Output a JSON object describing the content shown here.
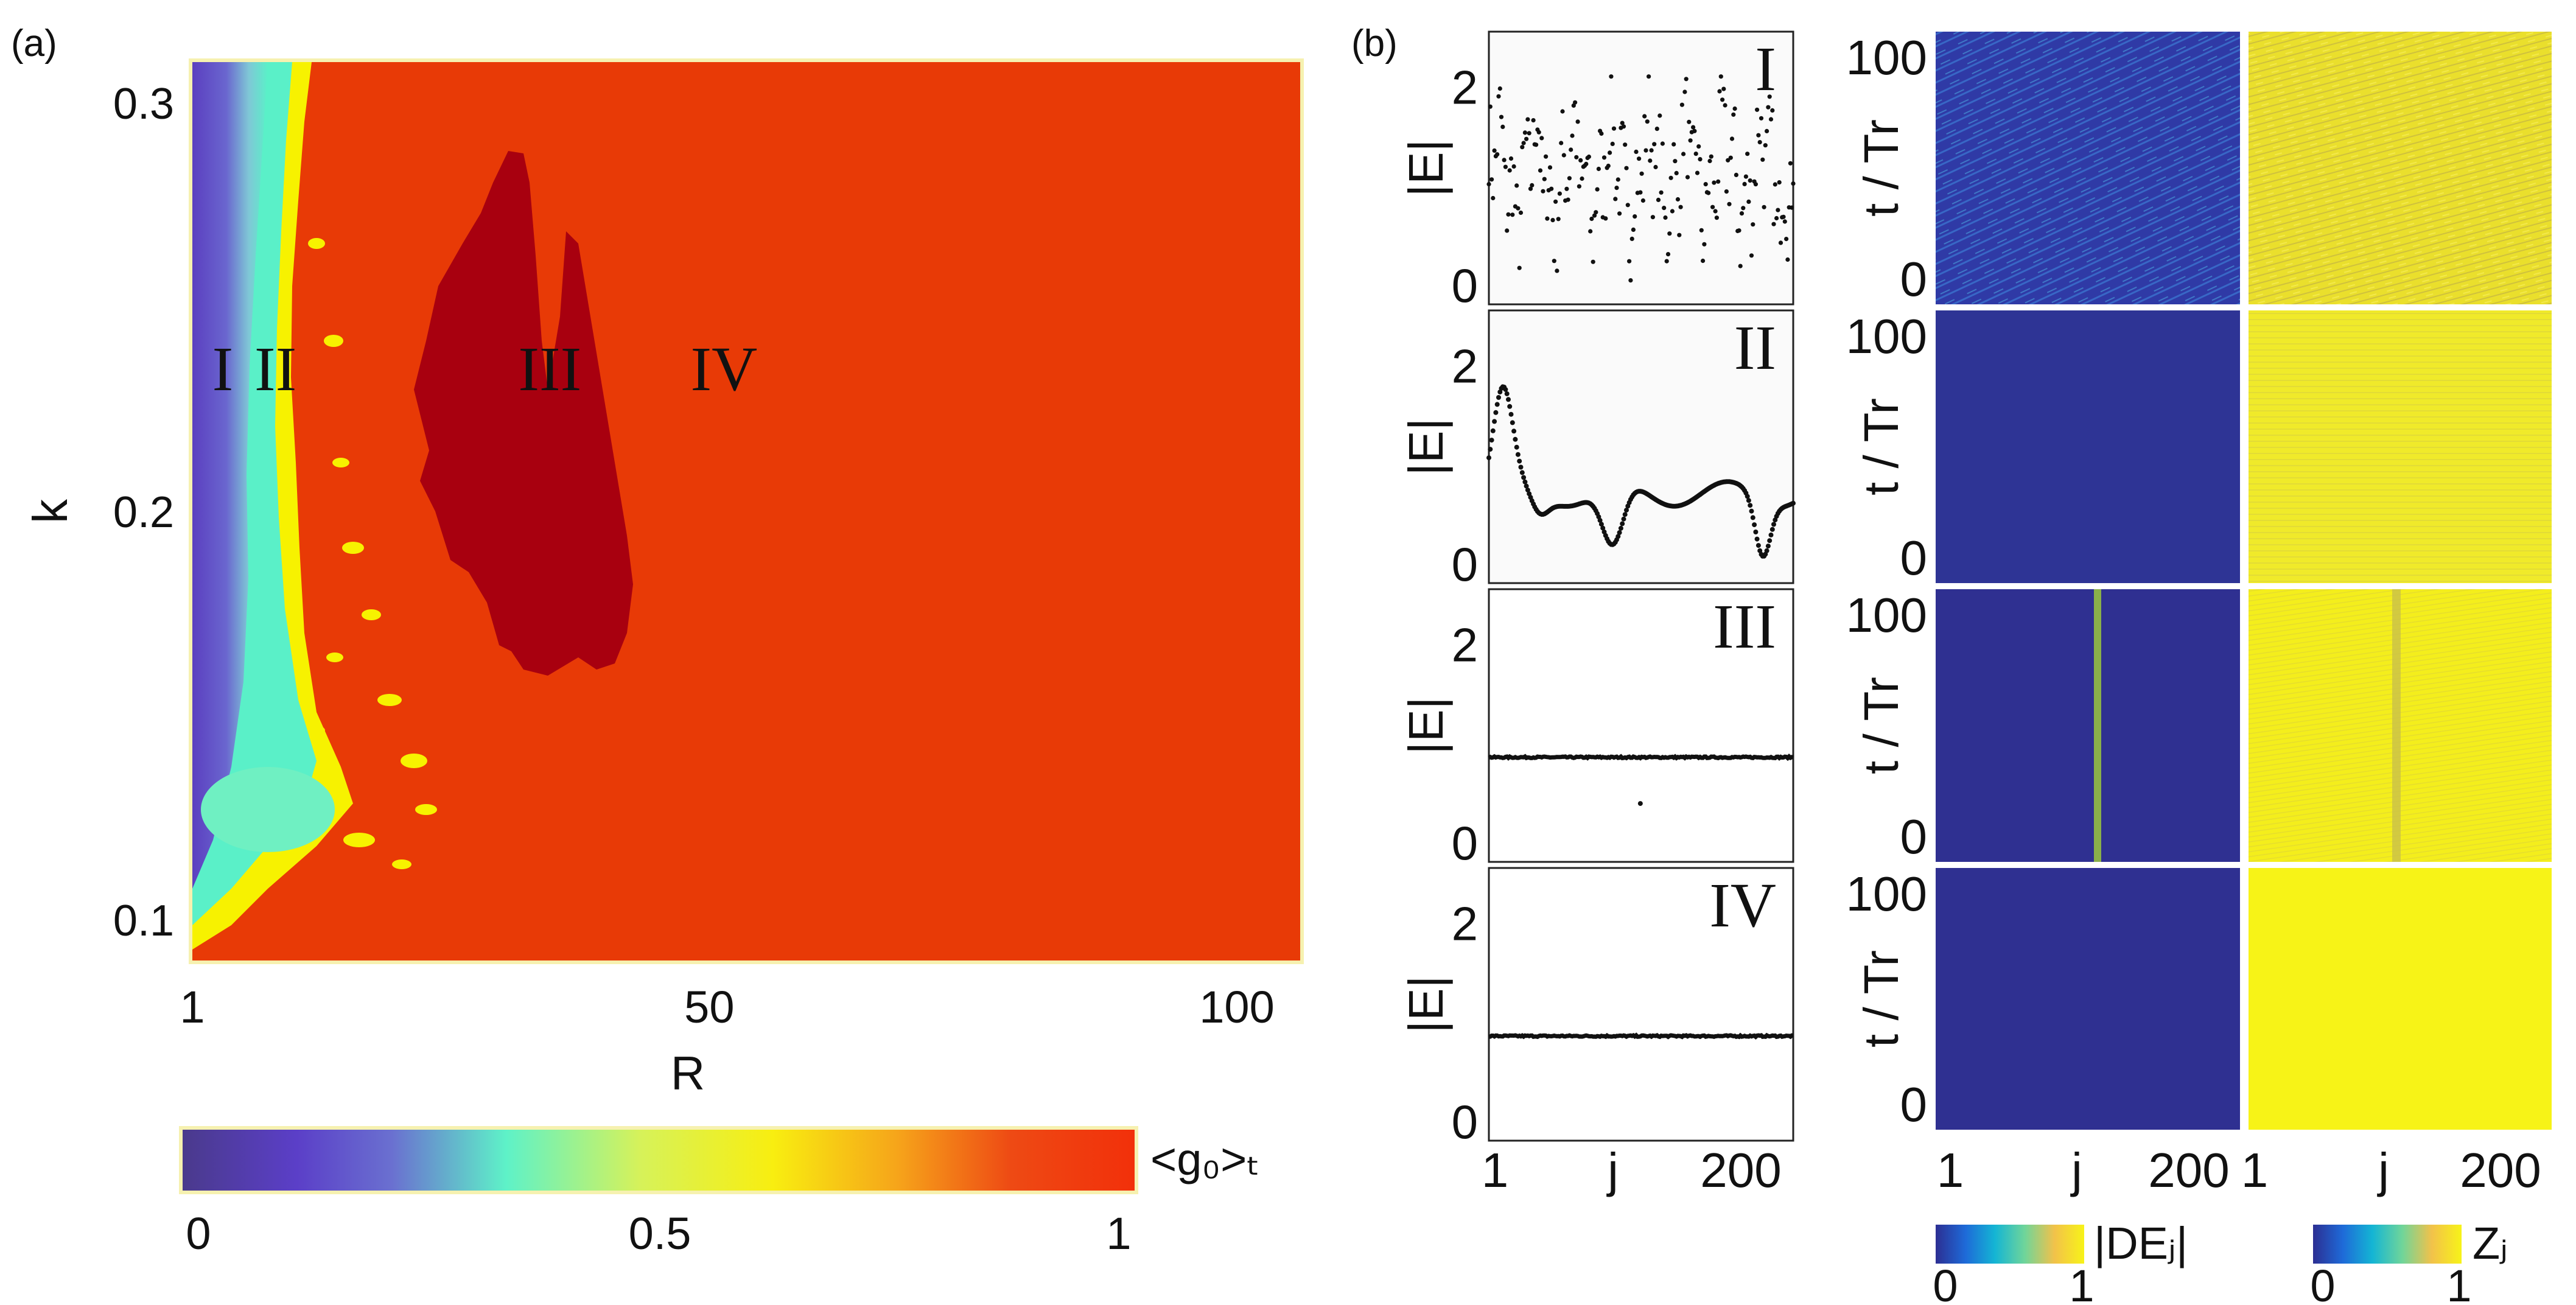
{
  "panel_labels": {
    "a": "(a)",
    "b": "(b)"
  },
  "chart_data": [
    {
      "type": "heatmap",
      "panel": "(a)",
      "xlabel": "R",
      "ylabel": "k",
      "xlim": [
        1,
        106
      ],
      "ylim": [
        0.09,
        0.31
      ],
      "xticks": [
        "1",
        "50",
        "100"
      ],
      "yticks": [
        "0.1",
        "0.2",
        "0.3"
      ],
      "colorbar": {
        "label": "<g₀>ₜ",
        "ticks": [
          "0",
          "0.5",
          "1"
        ],
        "range": [
          0,
          1
        ],
        "colormap": "purple-cyan-yellow-red"
      },
      "regions": [
        {
          "name": "I",
          "approx_value": 0.1,
          "R_range": [
            1,
            5
          ]
        },
        {
          "name": "II",
          "approx_value": 0.5,
          "R_range": [
            5,
            12
          ]
        },
        {
          "name": "III",
          "approx_value": 1.0,
          "R_range": [
            22,
            42
          ]
        },
        {
          "name": "IV",
          "approx_value": 0.95,
          "R_range": [
            12,
            106
          ]
        }
      ],
      "region_label_k": 0.235
    },
    {
      "type": "scatter",
      "panel": "(b)",
      "ylabel": "|E|",
      "xlabel": "j",
      "xticks": [
        "1",
        "j",
        "200"
      ],
      "yticks": [
        "0",
        "2"
      ],
      "ylim": [
        0,
        2.3
      ],
      "xlim": [
        1,
        220
      ],
      "rows": [
        {
          "name": "I",
          "pattern": "chaotic"
        },
        {
          "name": "II",
          "pattern": "smooth"
        },
        {
          "name": "III",
          "pattern": "flat",
          "level": 0.9,
          "outlier": [
            110,
            0.45
          ]
        },
        {
          "name": "IV",
          "pattern": "flat",
          "level": 0.9
        }
      ]
    },
    {
      "type": "heatmap",
      "panel": "(b)",
      "ylabel": "t / Tr",
      "xlabel": "j",
      "yticks": [
        "0",
        "100"
      ],
      "xticks": [
        "1",
        "j",
        "200"
      ],
      "colorbars": [
        {
          "label": "|DEⱼ|",
          "ticks": [
            "0",
            "1"
          ]
        },
        {
          "label": "Zⱼ",
          "ticks": [
            "0",
            "1"
          ]
        }
      ]
    }
  ],
  "colors": {
    "red": "#e83a06",
    "dark_red": "#a8000f",
    "purple": "#5b3fc0",
    "cyan": "#5af0c8",
    "yellow": "#f2f21e",
    "navy": "#2f3091",
    "frame": "#f4f0a8"
  }
}
